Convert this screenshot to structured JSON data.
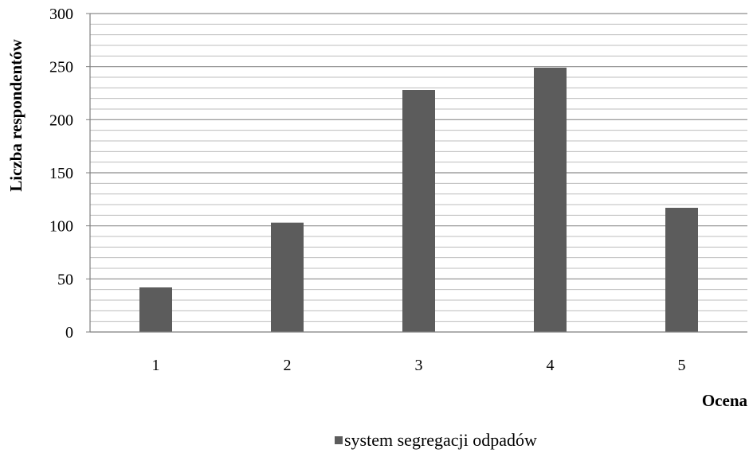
{
  "chart_data": {
    "type": "bar",
    "categories": [
      "1",
      "2",
      "3",
      "4",
      "5"
    ],
    "series": [
      {
        "name": "system segregacji  odpadów",
        "values": [
          42,
          103,
          228,
          249,
          117
        ]
      }
    ],
    "xlabel": "Ocena",
    "ylabel": "Liczba respondentów",
    "ylim": [
      0,
      300
    ],
    "yticks": [
      "0",
      "50",
      "100",
      "150",
      "200",
      "250",
      "300"
    ],
    "grid": true,
    "legend": "bottom",
    "bar_color": "#5c5c5c"
  }
}
